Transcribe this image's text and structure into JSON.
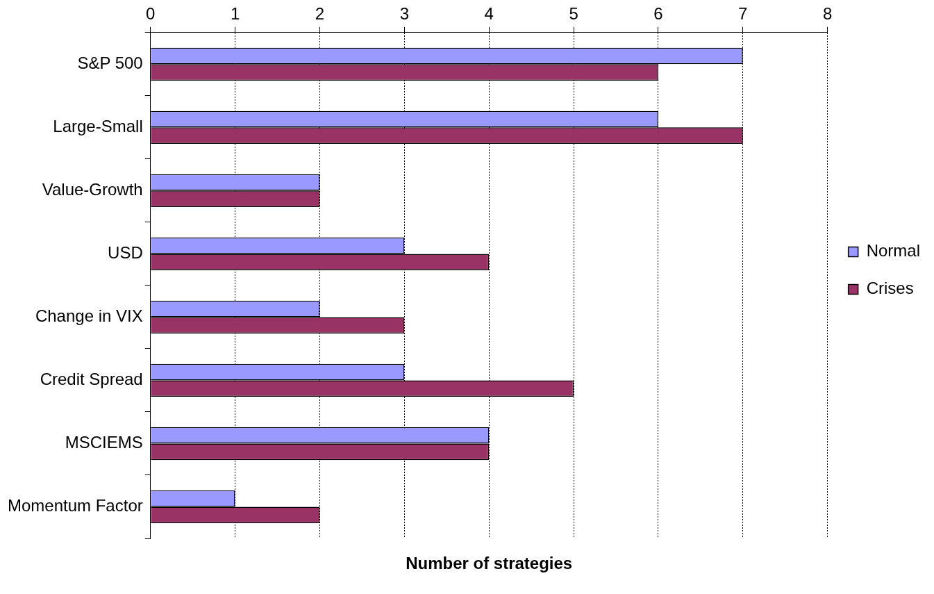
{
  "chart_data": {
    "type": "bar",
    "orientation": "horizontal",
    "xlabel": "Number of strategies",
    "categories": [
      "S&P 500",
      "Large-Small",
      "Value-Growth",
      "USD",
      "Change in VIX",
      "Credit Spread",
      "MSCIEMS",
      "Momentum Factor"
    ],
    "series": [
      {
        "name": "Normal",
        "color": "#9999ff",
        "values": [
          7,
          6,
          2,
          3,
          2,
          3,
          4,
          1
        ]
      },
      {
        "name": "Crises",
        "color": "#993366",
        "values": [
          6,
          7,
          2,
          4,
          3,
          5,
          4,
          2
        ]
      }
    ],
    "xlim": [
      0,
      8
    ],
    "xticks": [
      0,
      1,
      2,
      3,
      4,
      5,
      6,
      7,
      8
    ],
    "grid": "x",
    "legend": "right"
  }
}
